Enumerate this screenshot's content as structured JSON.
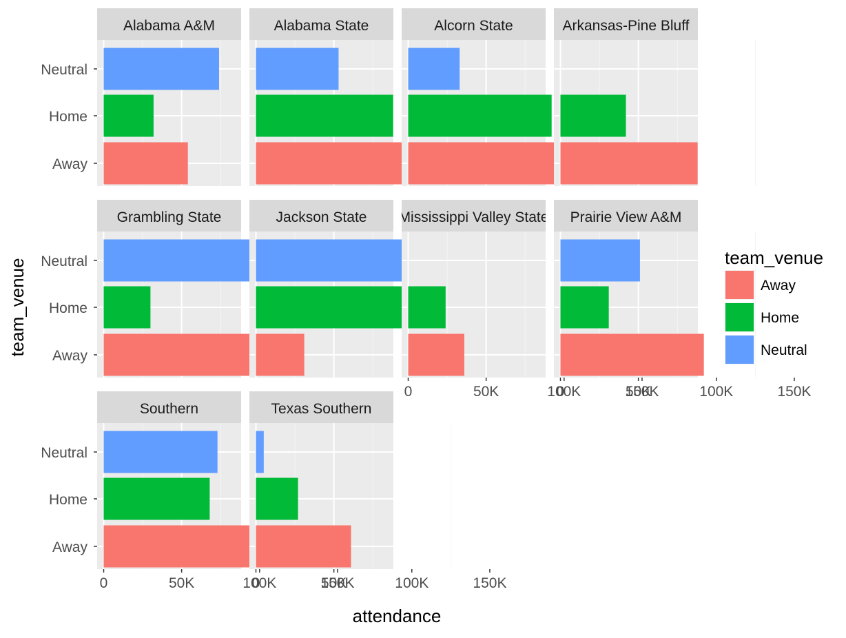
{
  "chart_data": {
    "type": "bar",
    "orientation": "horizontal",
    "facet_by": "team",
    "xlabel": "attendance",
    "ylabel": "team_venue",
    "xlim": [
      0,
      175000
    ],
    "x_ticks": [
      0,
      50000,
      100000,
      150000
    ],
    "x_tick_labels": [
      "0",
      "50K",
      "100K",
      "150K"
    ],
    "categories": [
      "Neutral",
      "Home",
      "Away"
    ],
    "legend": {
      "title": "team_venue",
      "position": "right",
      "items": [
        {
          "label": "Away",
          "color": "#F8766D"
        },
        {
          "label": "Home",
          "color": "#00BA38"
        },
        {
          "label": "Neutral",
          "color": "#619CFF"
        }
      ]
    },
    "colors": {
      "Away": "#F8766D",
      "Home": "#00BA38",
      "Neutral": "#619CFF"
    },
    "grid": true,
    "panels": [
      {
        "title": "Alabama A&M",
        "values": {
          "Neutral": 74000,
          "Home": 32000,
          "Away": 54000
        }
      },
      {
        "title": "Alabama State",
        "values": {
          "Neutral": 53000,
          "Home": 88000,
          "Away": 131000
        }
      },
      {
        "title": "Alcorn State",
        "values": {
          "Neutral": 33000,
          "Home": 92000,
          "Away": 96000
        }
      },
      {
        "title": "Arkansas-Pine Bluff",
        "values": {
          "Neutral": 0,
          "Home": 42000,
          "Away": 88000
        }
      },
      {
        "title": "Grambling State",
        "values": {
          "Neutral": 120000,
          "Home": 30000,
          "Away": 107000
        }
      },
      {
        "title": "Jackson State",
        "values": {
          "Neutral": 99000,
          "Home": 167000,
          "Away": 31000
        }
      },
      {
        "title": "Mississippi Valley State",
        "values": {
          "Neutral": 0,
          "Home": 24000,
          "Away": 36000
        }
      },
      {
        "title": "Prairie View A&M",
        "values": {
          "Neutral": 51000,
          "Home": 31000,
          "Away": 92000
        }
      },
      {
        "title": "Southern",
        "values": {
          "Neutral": 73000,
          "Home": 68000,
          "Away": 167000
        }
      },
      {
        "title": "Texas Southern",
        "values": {
          "Neutral": 5000,
          "Home": 27000,
          "Away": 61000
        }
      }
    ]
  }
}
